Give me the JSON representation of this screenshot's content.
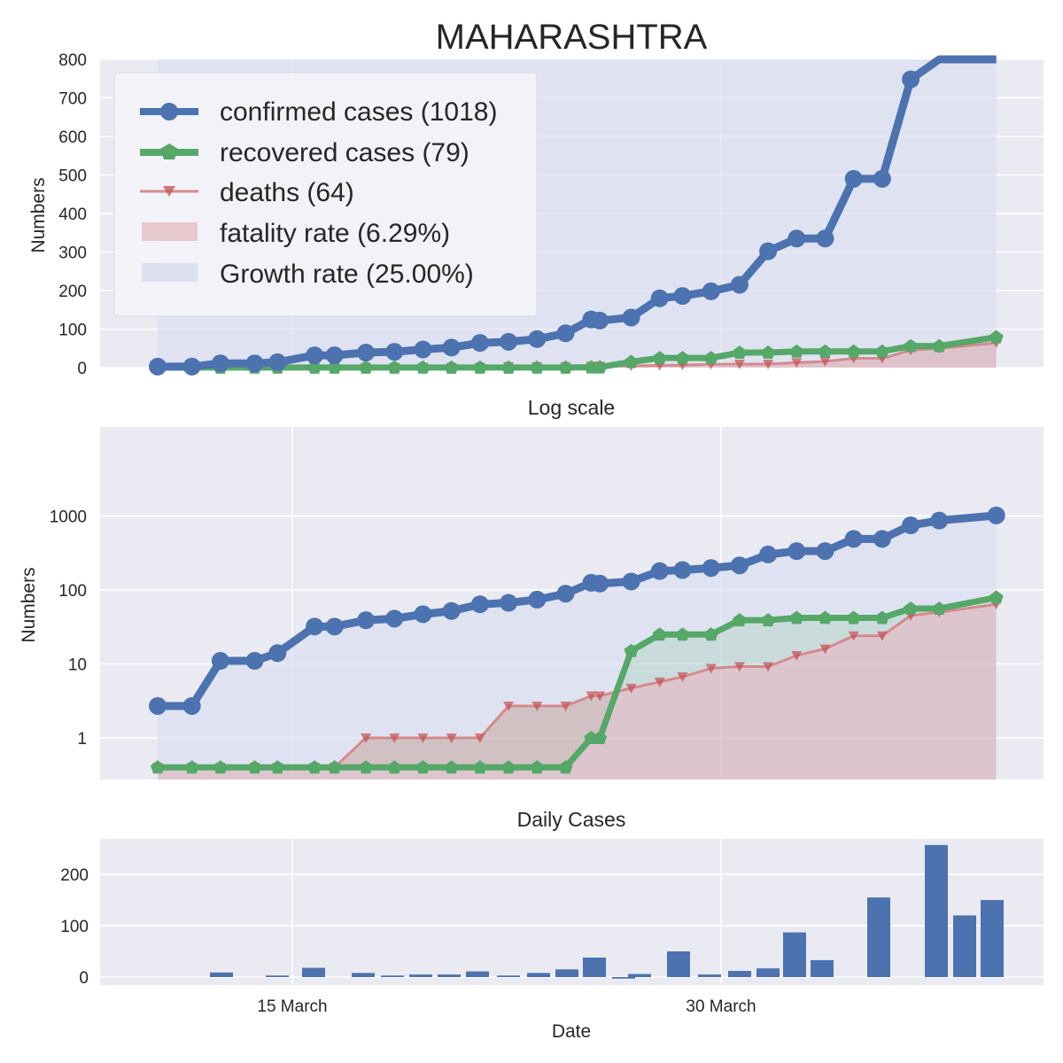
{
  "figure": {
    "title": "MAHARASHTRA",
    "xlabel": "Date",
    "colors": {
      "confirmed": "#4c72b0",
      "recovered": "#55a868",
      "deaths": "#c44e52",
      "fatality_fill": "#dba2a5",
      "growth_fill": "#d5dbee",
      "axes_bg": "#eaeaf2",
      "grid": "#ffffff"
    }
  },
  "legend": {
    "items": [
      {
        "key": "confirmed",
        "label": "confirmed cases (1018)"
      },
      {
        "key": "recovered",
        "label": "recovered cases (79)"
      },
      {
        "key": "deaths",
        "label": "deaths (64)"
      },
      {
        "key": "fatality",
        "label": "fatality rate (6.29%)"
      },
      {
        "key": "growth",
        "label": "Growth rate (25.00%)"
      }
    ]
  },
  "chart_data": [
    {
      "type": "line",
      "panel": "linear",
      "title": "MAHARASHTRA",
      "ylabel": "Numbers",
      "xlabel": "",
      "ylim": [
        0,
        800
      ],
      "yticks": [
        0,
        100,
        200,
        300,
        400,
        500,
        600,
        700,
        800
      ],
      "grid": true,
      "legend_position": "top-left",
      "series_ref": "series"
    },
    {
      "type": "line",
      "panel": "log",
      "title": "Log scale",
      "ylabel": "Numbers",
      "yscale": "log",
      "ylim": [
        0.45,
        9000
      ],
      "ytick_labels": [
        "1",
        "10",
        "100",
        "1000"
      ],
      "grid": true,
      "series_ref": "series"
    },
    {
      "type": "bar",
      "panel": "daily",
      "title": "Daily Cases",
      "xlabel": "Date",
      "ylim": [
        -15,
        270
      ],
      "ytick_labels": [
        "0",
        "100",
        "200"
      ],
      "xtick_labels": [
        "15 March",
        "30 March"
      ],
      "grid": true,
      "bars": [
        {
          "x": "2020-03-12",
          "value": 9
        },
        {
          "x": "2020-03-14",
          "value": 3
        },
        {
          "x": "2020-03-16",
          "value": 18
        },
        {
          "x": "2020-03-18",
          "value": 8
        },
        {
          "x": "2020-03-19",
          "value": 3
        },
        {
          "x": "2020-03-20",
          "value": 5
        },
        {
          "x": "2020-03-21",
          "value": 5
        },
        {
          "x": "2020-03-22",
          "value": 11
        },
        {
          "x": "2020-03-23",
          "value": 3
        },
        {
          "x": "2020-03-24",
          "value": 8
        },
        {
          "x": "2020-03-25",
          "value": 15
        },
        {
          "x": "2020-03-26",
          "value": 38
        },
        {
          "x": "2020-03-27",
          "value": -3
        },
        {
          "x": "2020-03-27.5",
          "value": 6
        },
        {
          "x": "2020-03-29",
          "value": 50
        },
        {
          "x": "2020-03-30",
          "value": 5
        },
        {
          "x": "2020-03-31",
          "value": 12
        },
        {
          "x": "2020-04-01",
          "value": 17
        },
        {
          "x": "2020-04-02",
          "value": 87
        },
        {
          "x": "2020-04-03",
          "value": 33
        },
        {
          "x": "2020-04-05",
          "value": 155
        },
        {
          "x": "2020-04-07",
          "value": 257
        },
        {
          "x": "2020-04-08",
          "value": 120
        },
        {
          "x": "2020-04-09",
          "value": 150
        }
      ]
    }
  ],
  "series": {
    "dates": [
      "2020-03-09",
      "2020-03-10",
      "2020-03-11",
      "2020-03-12",
      "2020-03-13",
      "2020-03-14",
      "2020-03-15",
      "2020-03-16",
      "2020-03-17",
      "2020-03-18",
      "2020-03-19",
      "2020-03-20",
      "2020-03-21",
      "2020-03-22",
      "2020-03-23",
      "2020-03-24",
      "2020-03-25",
      "2020-03-26",
      "2020-03-27",
      "2020-03-28",
      "2020-03-29",
      "2020-03-30",
      "2020-03-31",
      "2020-04-01",
      "2020-04-02",
      "2020-04-03",
      "2020-04-04",
      "2020-04-05",
      "2020-04-06",
      "2020-04-07",
      "2020-04-08"
    ],
    "x_pos": [
      0,
      1.2,
      2.2,
      3.4,
      4.2,
      5.5,
      6.2,
      7.3,
      8.3,
      9.3,
      10.3,
      11.3,
      12.3,
      13.3,
      14.3,
      15.2,
      15.5,
      16.6,
      17.6,
      18.4,
      19.4,
      20.4,
      21.4,
      22.4,
      23.4,
      24.4,
      25.4,
      26.4,
      27.4,
      28.4,
      29.4
    ],
    "confirmed": [
      2.7,
      2.7,
      11,
      11,
      14,
      32,
      32,
      39,
      41,
      47,
      52,
      64,
      67,
      74,
      89,
      125,
      122,
      130,
      180,
      186,
      198,
      215,
      302,
      335,
      335,
      490,
      490,
      748,
      868,
      null,
      1018
    ],
    "recovered": [
      0.4,
      0.4,
      0.4,
      0.4,
      0.4,
      0.4,
      0.4,
      0.4,
      0.4,
      0.4,
      0.4,
      0.4,
      0.4,
      0.4,
      0.4,
      1,
      1,
      15,
      25,
      25,
      25,
      39,
      39,
      42,
      42,
      42,
      42,
      56,
      56,
      null,
      79
    ],
    "deaths": [
      0.4,
      0.4,
      0.4,
      0.4,
      0.4,
      0.4,
      0.4,
      1,
      1,
      1,
      1,
      1,
      2.7,
      2.7,
      2.7,
      3.7,
      3.7,
      4.7,
      5.7,
      6.7,
      8.7,
      9.2,
      9.2,
      13,
      16,
      24,
      24,
      45,
      50,
      null,
      64
    ]
  }
}
